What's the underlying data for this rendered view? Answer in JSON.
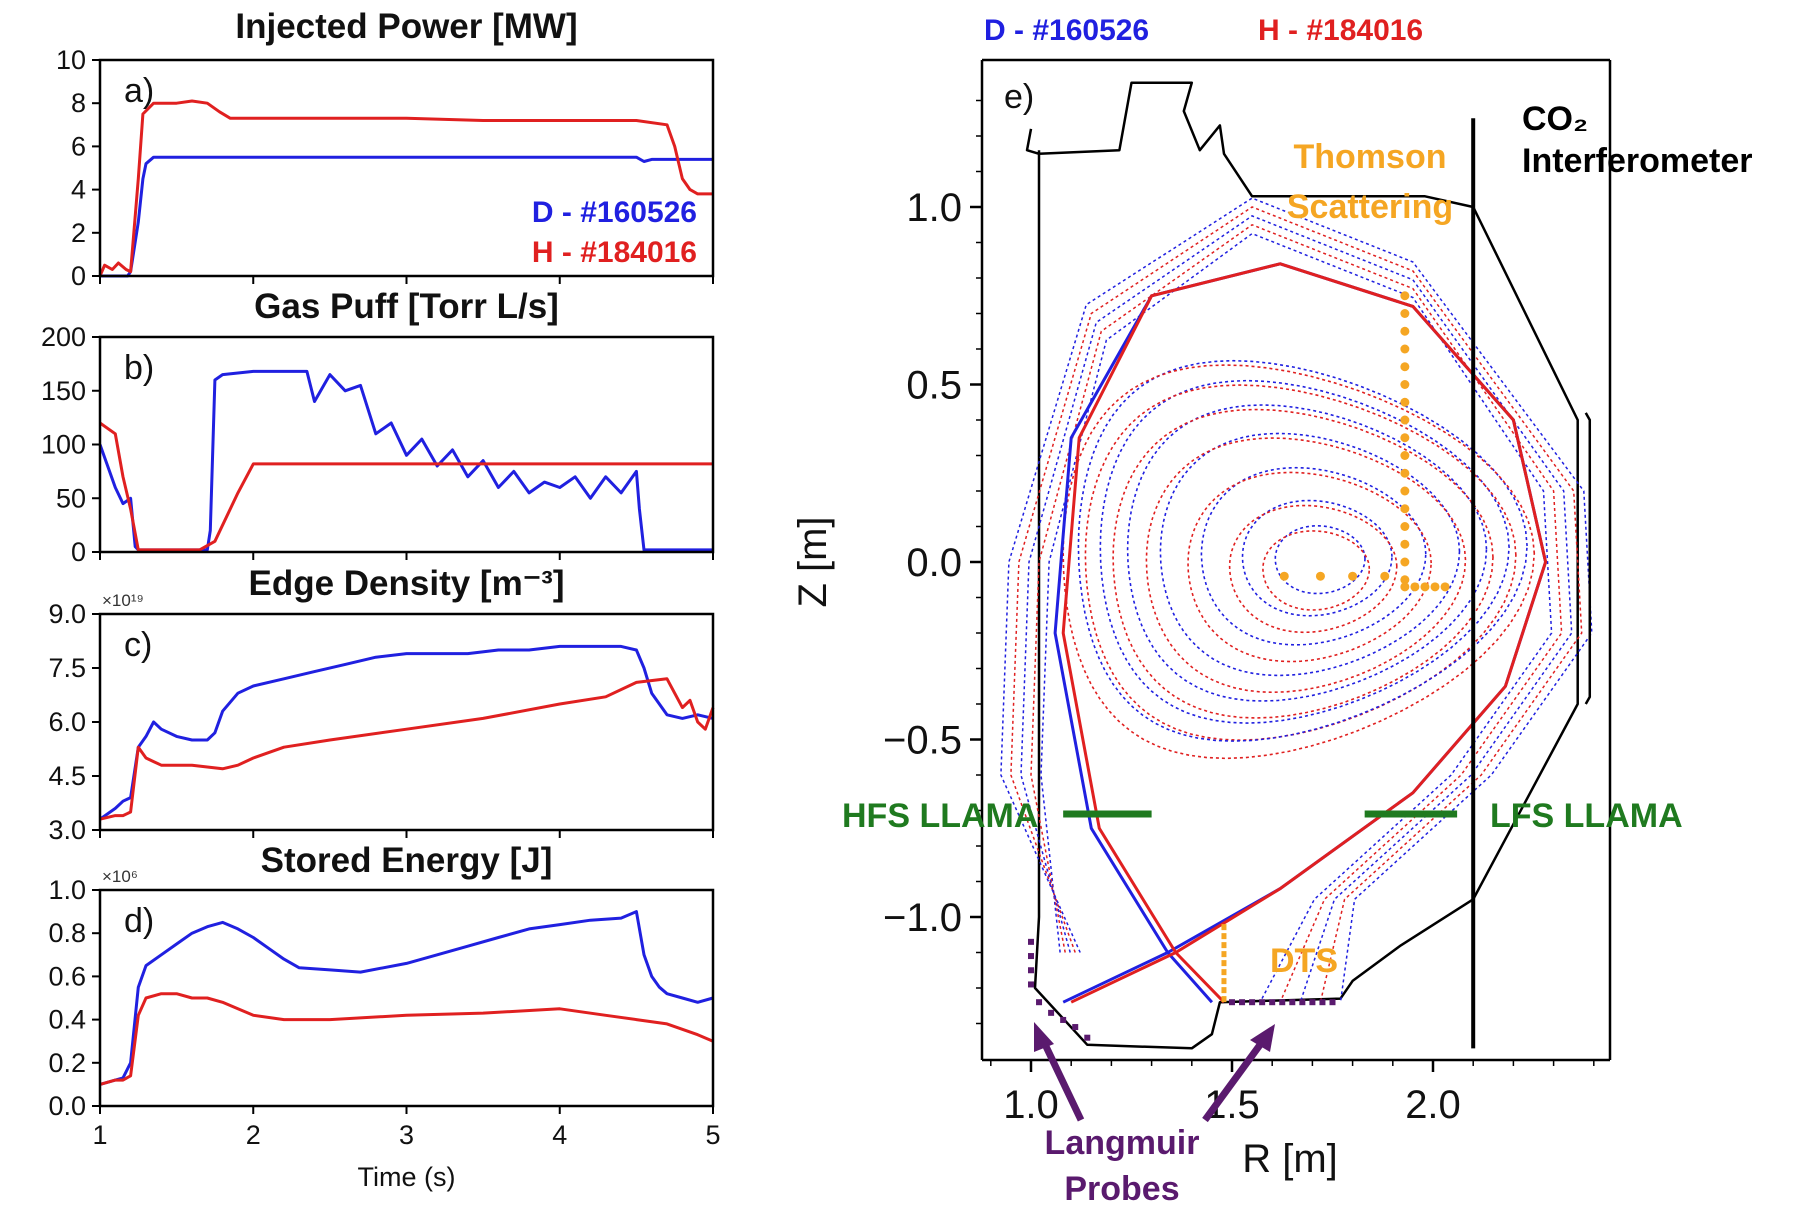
{
  "colors": {
    "D": "#2020e0",
    "H": "#e02020",
    "thomson": "#f5a623",
    "llama": "#1f7a1f",
    "probes": "#5a1a6e",
    "axis": "#000000"
  },
  "header": {
    "D_label": "D - #160526",
    "H_label": "H - #184016"
  },
  "chart_data": [
    {
      "type": "line",
      "panel": "a)",
      "title": "Injected Power [MW]",
      "xlim": [
        1,
        5
      ],
      "ylim": [
        0,
        10
      ],
      "yticks": [
        "0",
        "2",
        "4",
        "6",
        "8",
        "10"
      ],
      "legend": {
        "D": "D - #160526",
        "H": "H - #184016"
      },
      "series": [
        {
          "name": "D - #160526",
          "x": [
            1.0,
            1.18,
            1.2,
            1.25,
            1.28,
            1.3,
            1.35,
            1.4,
            2.0,
            3.0,
            4.0,
            4.5,
            4.55,
            4.6,
            5.0
          ],
          "y": [
            0,
            0,
            0.2,
            2.5,
            4.5,
            5.2,
            5.5,
            5.5,
            5.5,
            5.5,
            5.5,
            5.5,
            5.3,
            5.4,
            5.4
          ]
        },
        {
          "name": "H - #184016",
          "x": [
            1.0,
            1.03,
            1.08,
            1.12,
            1.17,
            1.2,
            1.25,
            1.28,
            1.35,
            1.5,
            1.6,
            1.7,
            1.78,
            1.85,
            2.0,
            2.5,
            3.0,
            3.5,
            4.0,
            4.5,
            4.7,
            4.75,
            4.8,
            4.85,
            4.9,
            5.0
          ],
          "y": [
            0,
            0.5,
            0.3,
            0.6,
            0.3,
            0.2,
            4.5,
            7.5,
            8.0,
            8.0,
            8.1,
            8.0,
            7.6,
            7.3,
            7.3,
            7.3,
            7.3,
            7.2,
            7.2,
            7.2,
            7.0,
            6.0,
            4.5,
            4.0,
            3.8,
            3.8
          ]
        }
      ]
    },
    {
      "type": "line",
      "panel": "b)",
      "title": "Gas Puff [Torr L/s]",
      "xlim": [
        1,
        5
      ],
      "ylim": [
        0,
        200
      ],
      "yticks": [
        "0",
        "50",
        "100",
        "150",
        "200"
      ],
      "series": [
        {
          "name": "D - #160526",
          "x": [
            1.0,
            1.1,
            1.15,
            1.2,
            1.23,
            1.25,
            1.5,
            1.7,
            1.72,
            1.75,
            1.8,
            2.0,
            2.2,
            2.35,
            2.4,
            2.5,
            2.6,
            2.7,
            2.8,
            2.9,
            3.0,
            3.1,
            3.2,
            3.3,
            3.4,
            3.5,
            3.6,
            3.7,
            3.8,
            3.9,
            4.0,
            4.1,
            4.2,
            4.3,
            4.4,
            4.5,
            4.52,
            4.55,
            4.6,
            5.0
          ],
          "y": [
            100,
            60,
            45,
            50,
            5,
            2,
            2,
            2,
            20,
            160,
            165,
            168,
            168,
            168,
            140,
            165,
            150,
            155,
            110,
            120,
            90,
            105,
            80,
            95,
            70,
            85,
            60,
            75,
            55,
            65,
            60,
            70,
            50,
            70,
            55,
            75,
            40,
            2,
            2,
            2
          ]
        },
        {
          "name": "H - #184016",
          "x": [
            1.0,
            1.1,
            1.15,
            1.2,
            1.25,
            1.5,
            1.65,
            1.75,
            1.9,
            2.0,
            2.5,
            3.0,
            3.5,
            4.0,
            4.5,
            5.0
          ],
          "y": [
            120,
            110,
            70,
            40,
            2,
            2,
            2,
            10,
            55,
            82,
            82,
            82,
            82,
            82,
            82,
            82
          ]
        }
      ]
    },
    {
      "type": "line",
      "panel": "c)",
      "title": "Edge Density [m⁻³]",
      "multiplier": "×10¹⁹",
      "xlim": [
        1,
        5
      ],
      "ylim": [
        3.0,
        9.0
      ],
      "yticks": [
        "3.0",
        "4.5",
        "6.0",
        "7.5",
        "9.0"
      ],
      "series": [
        {
          "name": "D - #160526",
          "x": [
            1.0,
            1.1,
            1.15,
            1.2,
            1.25,
            1.3,
            1.35,
            1.4,
            1.5,
            1.6,
            1.7,
            1.75,
            1.8,
            1.9,
            2.0,
            2.2,
            2.4,
            2.6,
            2.8,
            3.0,
            3.2,
            3.4,
            3.6,
            3.8,
            4.0,
            4.2,
            4.4,
            4.5,
            4.55,
            4.6,
            4.7,
            4.8,
            4.9,
            5.0
          ],
          "y": [
            3.3,
            3.6,
            3.8,
            3.9,
            5.3,
            5.6,
            6.0,
            5.8,
            5.6,
            5.5,
            5.5,
            5.7,
            6.3,
            6.8,
            7.0,
            7.2,
            7.4,
            7.6,
            7.8,
            7.9,
            7.9,
            7.9,
            8.0,
            8.0,
            8.1,
            8.1,
            8.1,
            8.0,
            7.5,
            6.8,
            6.2,
            6.1,
            6.2,
            6.1
          ]
        },
        {
          "name": "H - #184016",
          "x": [
            1.0,
            1.1,
            1.15,
            1.2,
            1.25,
            1.3,
            1.35,
            1.4,
            1.6,
            1.8,
            1.9,
            2.0,
            2.2,
            2.5,
            3.0,
            3.5,
            4.0,
            4.3,
            4.5,
            4.7,
            4.75,
            4.8,
            4.85,
            4.9,
            4.95,
            5.0
          ],
          "y": [
            3.3,
            3.4,
            3.4,
            3.5,
            5.3,
            5.0,
            4.9,
            4.8,
            4.8,
            4.7,
            4.8,
            5.0,
            5.3,
            5.5,
            5.8,
            6.1,
            6.5,
            6.7,
            7.1,
            7.2,
            6.8,
            6.4,
            6.6,
            6.0,
            5.8,
            6.4
          ]
        }
      ]
    },
    {
      "type": "line",
      "panel": "d)",
      "title": "Stored Energy [J]",
      "multiplier": "×10⁶",
      "xlim": [
        1,
        5
      ],
      "ylim": [
        0.0,
        1.0
      ],
      "xticks": [
        "1",
        "2",
        "3",
        "4",
        "5"
      ],
      "yticks": [
        "0.0",
        "0.2",
        "0.4",
        "0.6",
        "0.8",
        "1.0"
      ],
      "xlabel": "Time (s)",
      "series": [
        {
          "name": "D - #160526",
          "x": [
            1.0,
            1.1,
            1.15,
            1.2,
            1.25,
            1.3,
            1.4,
            1.5,
            1.6,
            1.7,
            1.8,
            1.9,
            2.0,
            2.1,
            2.2,
            2.3,
            2.5,
            2.7,
            3.0,
            3.2,
            3.4,
            3.6,
            3.8,
            4.0,
            4.2,
            4.4,
            4.5,
            4.55,
            4.6,
            4.65,
            4.7,
            4.8,
            4.9,
            5.0
          ],
          "y": [
            0.1,
            0.12,
            0.13,
            0.2,
            0.55,
            0.65,
            0.7,
            0.75,
            0.8,
            0.83,
            0.85,
            0.82,
            0.78,
            0.73,
            0.68,
            0.64,
            0.63,
            0.62,
            0.66,
            0.7,
            0.74,
            0.78,
            0.82,
            0.84,
            0.86,
            0.87,
            0.9,
            0.7,
            0.6,
            0.55,
            0.52,
            0.5,
            0.48,
            0.5
          ]
        },
        {
          "name": "H - #184016",
          "x": [
            1.0,
            1.1,
            1.15,
            1.2,
            1.25,
            1.3,
            1.4,
            1.5,
            1.6,
            1.7,
            1.8,
            1.9,
            2.0,
            2.2,
            2.5,
            3.0,
            3.5,
            4.0,
            4.3,
            4.5,
            4.7,
            4.9,
            5.0
          ],
          "y": [
            0.1,
            0.12,
            0.12,
            0.14,
            0.42,
            0.5,
            0.52,
            0.52,
            0.5,
            0.5,
            0.48,
            0.45,
            0.42,
            0.4,
            0.4,
            0.42,
            0.43,
            0.45,
            0.42,
            0.4,
            0.38,
            0.33,
            0.3
          ]
        }
      ]
    },
    {
      "type": "line",
      "panel": "e)",
      "xlabel": "R [m]",
      "ylabel": "Z [m]",
      "xlim": [
        0.9,
        2.4
      ],
      "ylim": [
        -1.4,
        1.4
      ],
      "xticks": [
        "1.0",
        "1.5",
        "2.0"
      ],
      "yticks": [
        "1.0",
        "0.5",
        "0.0",
        "−0.5",
        "−1.0"
      ],
      "legend": {
        "D": "D - #160526",
        "H": "H - #184016"
      },
      "labels": {
        "thomson": "Thomson\nScattering",
        "co2": "CO₂\nInterferometer",
        "hfs": "HFS LLAMA",
        "lfs": "LFS LLAMA",
        "dts": "DTS",
        "probes": "Langmuir\nProbes"
      },
      "separatrix_D": {
        "R0": 1.67,
        "Z0": 0.05,
        "a": 0.62,
        "kappa_up": 0.95,
        "kappa_low": 1.0
      },
      "separatrix_H": {
        "R0": 1.66,
        "Z0": 0.03,
        "a": 0.63,
        "kappa_up": 0.92,
        "kappa_low": 1.0
      },
      "x_point": {
        "R": 1.34,
        "Z": -1.1
      }
    }
  ]
}
